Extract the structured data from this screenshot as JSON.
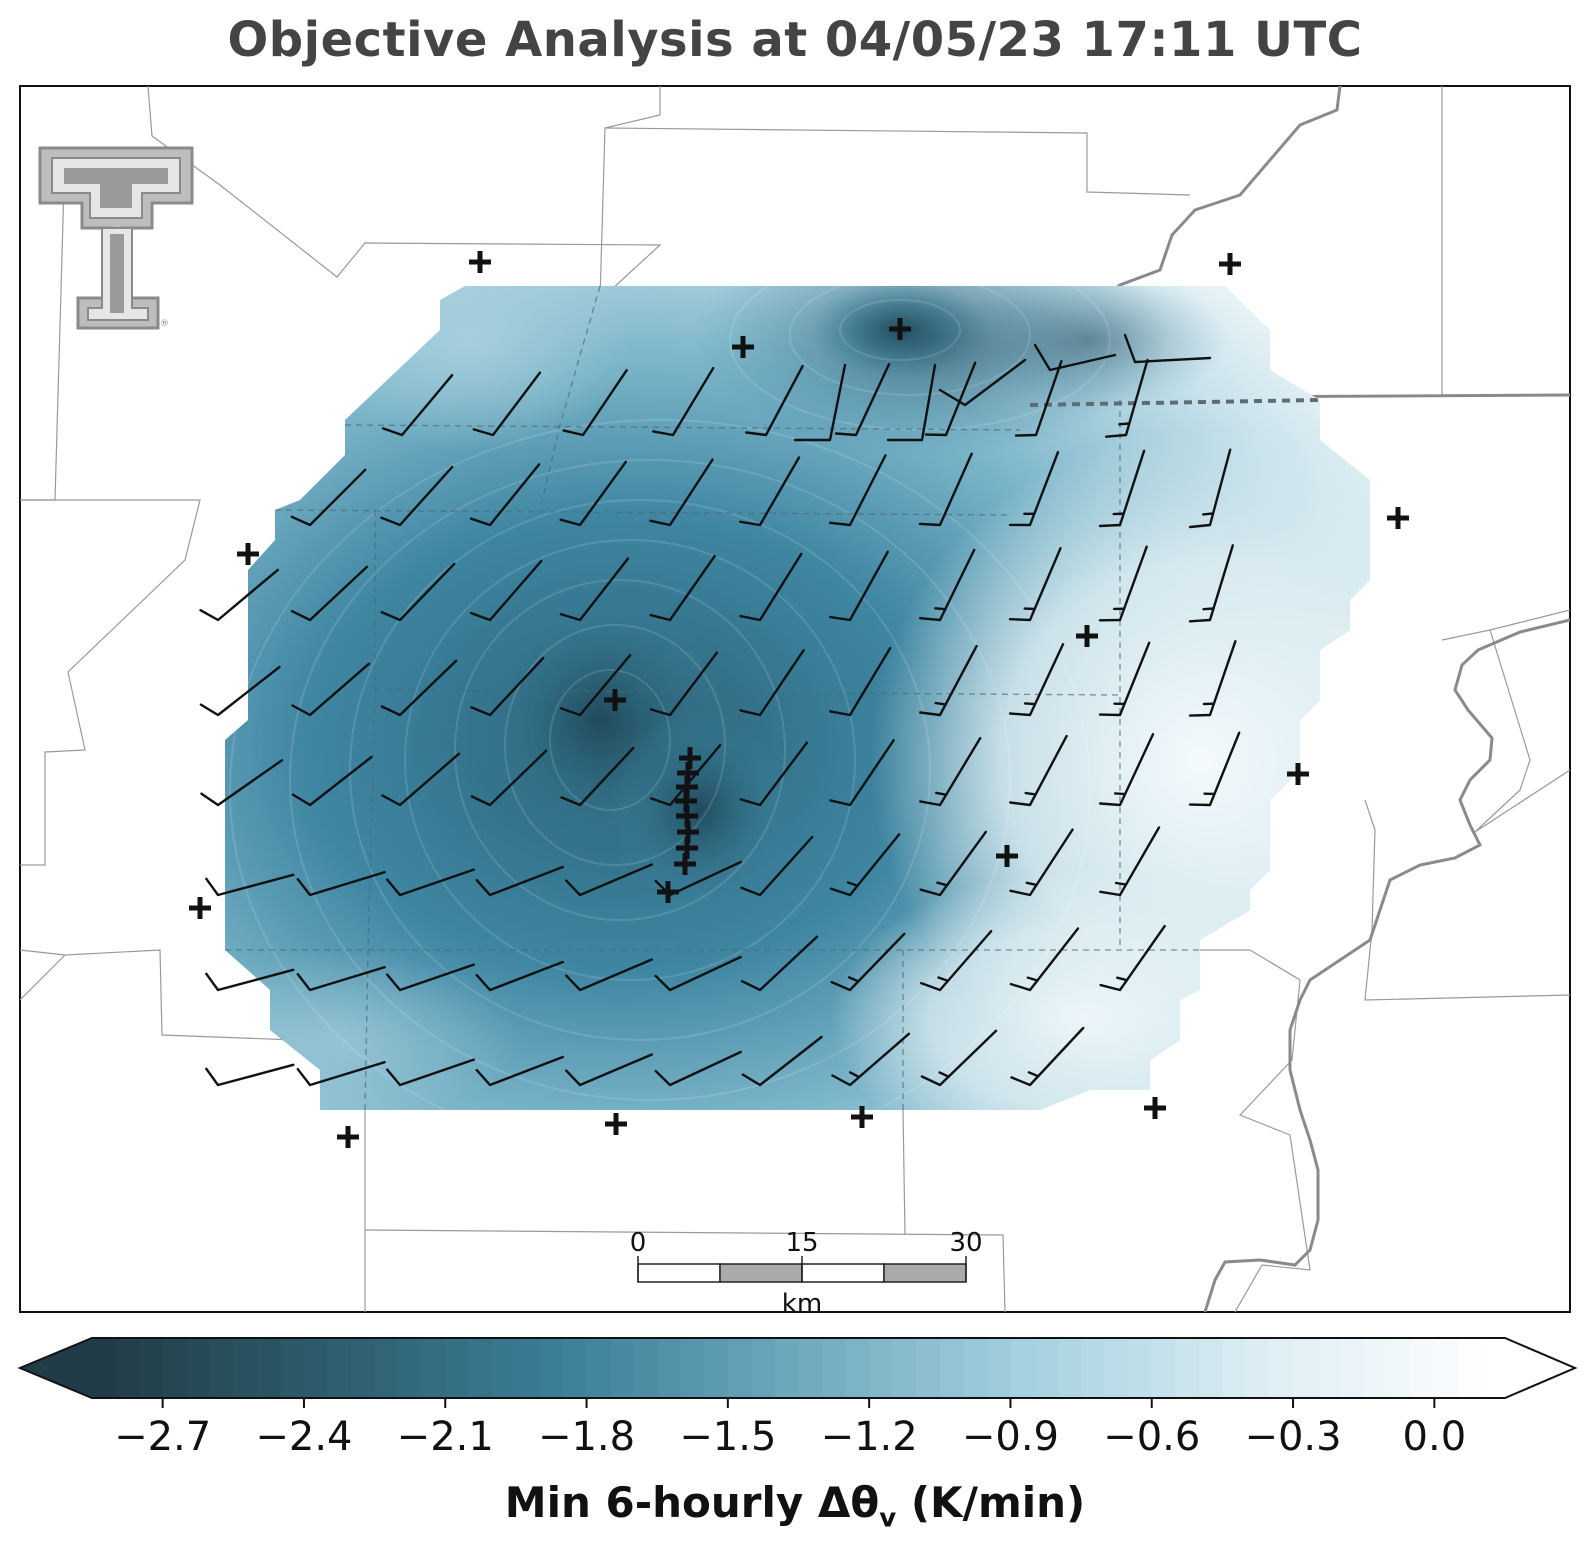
{
  "title": "Objective Analysis at 04/05/23 17:11 UTC",
  "colorbar": {
    "label_main": "Min 6-hourly Δθ",
    "label_sub": "v",
    "label_unit": " (K/min)",
    "ticks": [
      "−2.7",
      "−2.4",
      "−2.1",
      "−1.8",
      "−1.5",
      "−1.2",
      "−0.9",
      "−0.6",
      "−0.3",
      "0.0"
    ],
    "tick_values": [
      -2.7,
      -2.4,
      -2.1,
      -1.8,
      -1.5,
      -1.2,
      -0.9,
      -0.6,
      -0.3,
      0.0
    ],
    "range": [
      -2.85,
      0.15
    ],
    "extend": "both",
    "color_stops": [
      "#213c47",
      "#2f5e6e",
      "#3b8099",
      "#6fa9bd",
      "#a6d1e0",
      "#dcedf3",
      "#ffffff"
    ]
  },
  "scalebar": {
    "ticks": [
      "0",
      "15",
      "30"
    ],
    "unit": "km"
  },
  "logo": "texas-tech-double-t-logo",
  "colors": {
    "border_state": "#888888",
    "border_county": "#9a9a9a",
    "barb": "#111111",
    "station": "#111111"
  }
}
